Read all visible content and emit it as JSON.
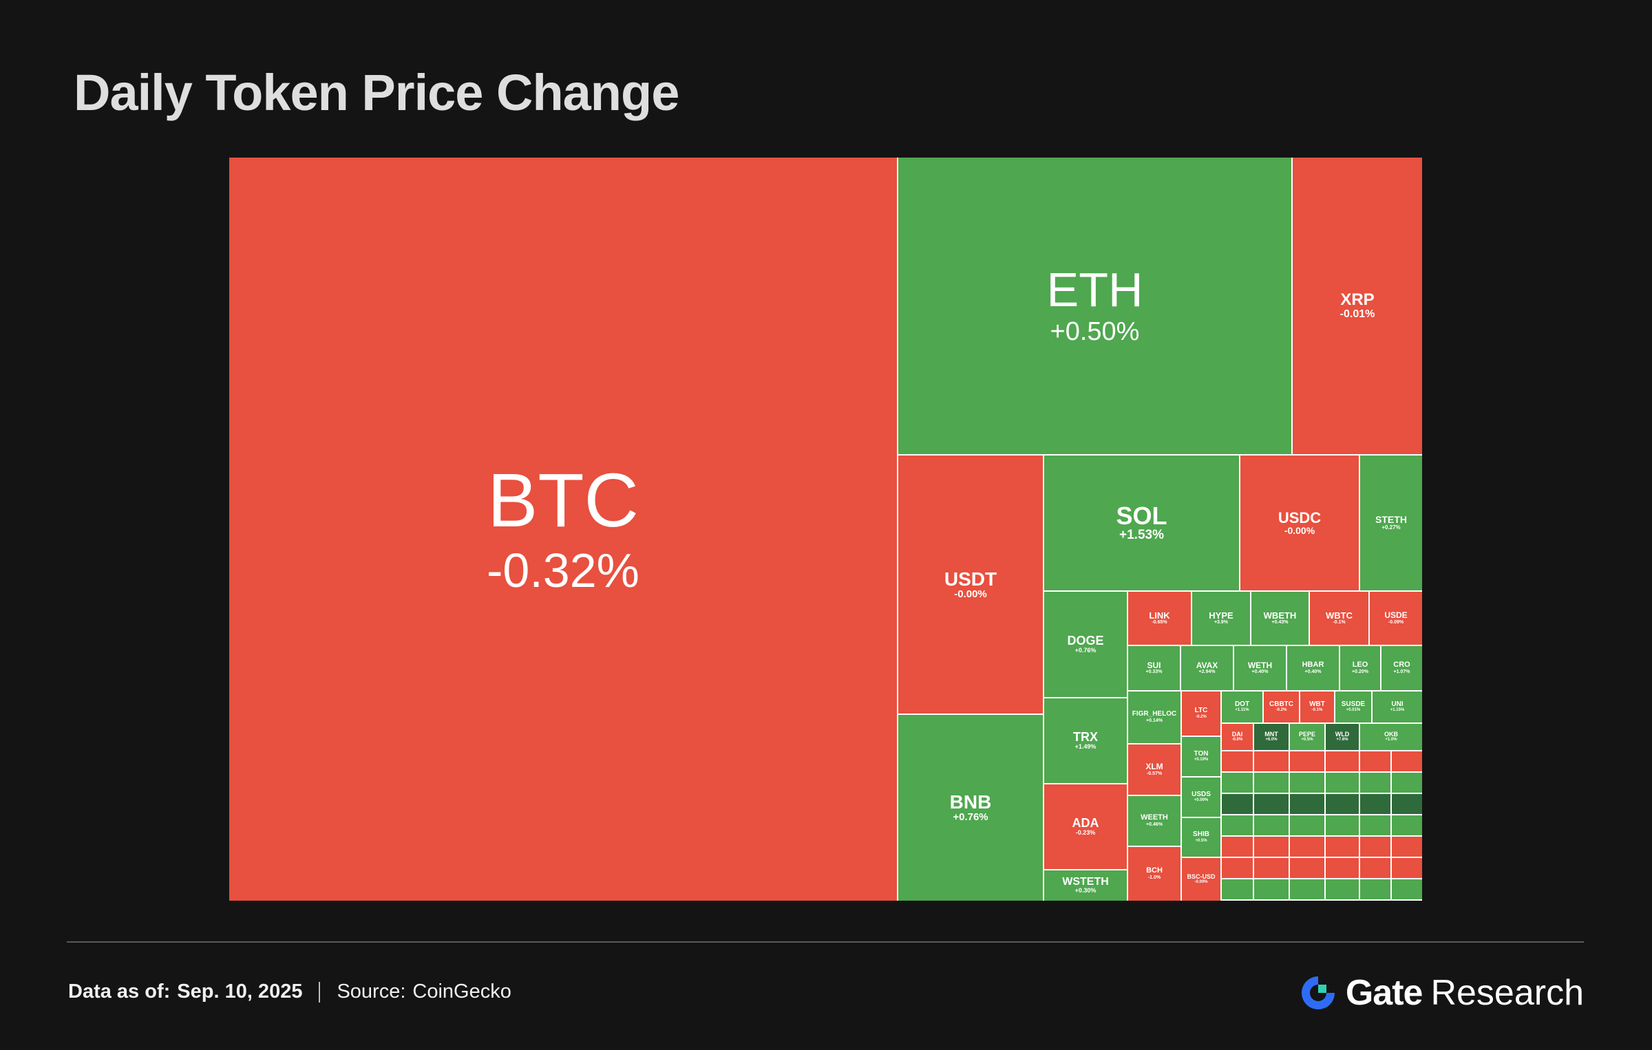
{
  "title": "Daily Token Price Change",
  "footer": {
    "data_as_of_label": "Data as of:",
    "data_as_of_value": "Sep. 10, 2025",
    "source_label": "Source:",
    "source_value": "CoinGecko"
  },
  "brand": {
    "name": "Gate",
    "suffix": "Research",
    "logo_color": "#2e6cf6"
  },
  "colors": {
    "up": "#4fa74f",
    "down": "#e8503f",
    "up_dark": "#2f6a3a",
    "background": "#141414"
  },
  "chart_data": {
    "type": "treemap",
    "metric": "24h price change (%)",
    "tiles": [
      {
        "symbol": "BTC",
        "change": "-0.32%",
        "value": -0.32
      },
      {
        "symbol": "ETH",
        "change": "+0.50%",
        "value": 0.5
      },
      {
        "symbol": "XRP",
        "change": "-0.01%",
        "value": -0.01
      },
      {
        "symbol": "USDT",
        "change": "-0.00%",
        "value": -0.0
      },
      {
        "symbol": "SOL",
        "change": "+1.53%",
        "value": 1.53
      },
      {
        "symbol": "USDC",
        "change": "-0.00%",
        "value": -0.0
      },
      {
        "symbol": "STETH",
        "change": "+0.27%",
        "value": 0.27
      },
      {
        "symbol": "BNB",
        "change": "+0.76%",
        "value": 0.76
      },
      {
        "symbol": "DOGE",
        "change": "+0.76%",
        "value": 0.76
      },
      {
        "symbol": "TRX",
        "change": "+1.49%",
        "value": 1.49
      },
      {
        "symbol": "ADA",
        "change": "-0.23%",
        "value": -0.23
      },
      {
        "symbol": "WSTETH",
        "change": "+0.30%",
        "value": 0.3
      },
      {
        "symbol": "LINK",
        "change": "-0.65%",
        "value": -0.65
      },
      {
        "symbol": "HYPE",
        "change": "+3.9%",
        "value": 3.9
      },
      {
        "symbol": "WBETH",
        "change": "+0.43%",
        "value": 0.43
      },
      {
        "symbol": "WBTC",
        "change": "-0.1%",
        "value": -0.1
      },
      {
        "symbol": "USDE",
        "change": "-0.09%",
        "value": -0.09
      },
      {
        "symbol": "SUI",
        "change": "+0.33%",
        "value": 0.33
      },
      {
        "symbol": "AVAX",
        "change": "+2.94%",
        "value": 2.94
      },
      {
        "symbol": "WETH",
        "change": "+0.40%",
        "value": 0.4
      },
      {
        "symbol": "HBAR",
        "change": "+0.40%",
        "value": 0.4
      },
      {
        "symbol": "LEO",
        "change": "+0.20%",
        "value": 0.2
      },
      {
        "symbol": "CRO",
        "change": "+1.07%",
        "value": 1.07
      },
      {
        "symbol": "FIGR_HELOC",
        "change": "+0.14%",
        "value": 0.14
      },
      {
        "symbol": "LTC",
        "change": "-0.2%",
        "value": -0.2
      },
      {
        "symbol": "DOT",
        "change": "+1.11%",
        "value": 1.11
      },
      {
        "symbol": "CBBTC",
        "change": "-0.2%",
        "value": -0.2
      },
      {
        "symbol": "WBT",
        "change": "-0.1%",
        "value": -0.1
      },
      {
        "symbol": "SUSDE",
        "change": "+0.01%",
        "value": 0.01
      },
      {
        "symbol": "UNI",
        "change": "+1.15%",
        "value": 1.15
      },
      {
        "symbol": "XLM",
        "change": "-0.57%",
        "value": -0.57
      },
      {
        "symbol": "TON",
        "change": "+0.10%",
        "value": 0.1
      },
      {
        "symbol": "USDS",
        "change": "+0.00%",
        "value": 0.0
      },
      {
        "symbol": "WEETH",
        "change": "+0.46%",
        "value": 0.46
      },
      {
        "symbol": "SHIB",
        "change": "+0.5%",
        "value": 0.5
      },
      {
        "symbol": "BCH",
        "change": "-1.0%",
        "value": -1.0
      },
      {
        "symbol": "BSC-USD",
        "change": "-0.00%",
        "value": -0.0
      },
      {
        "symbol": "DAI",
        "change": "-0.0%",
        "value": -0.0
      },
      {
        "symbol": "MNT",
        "change": "+6.0%",
        "value": 6.0
      },
      {
        "symbol": "PEPE",
        "change": "+0.5%",
        "value": 0.5
      },
      {
        "symbol": "WLD",
        "change": "+7.6%",
        "value": 7.6
      },
      {
        "symbol": "OKB",
        "change": "+1.0%",
        "value": 1.0
      }
    ]
  }
}
